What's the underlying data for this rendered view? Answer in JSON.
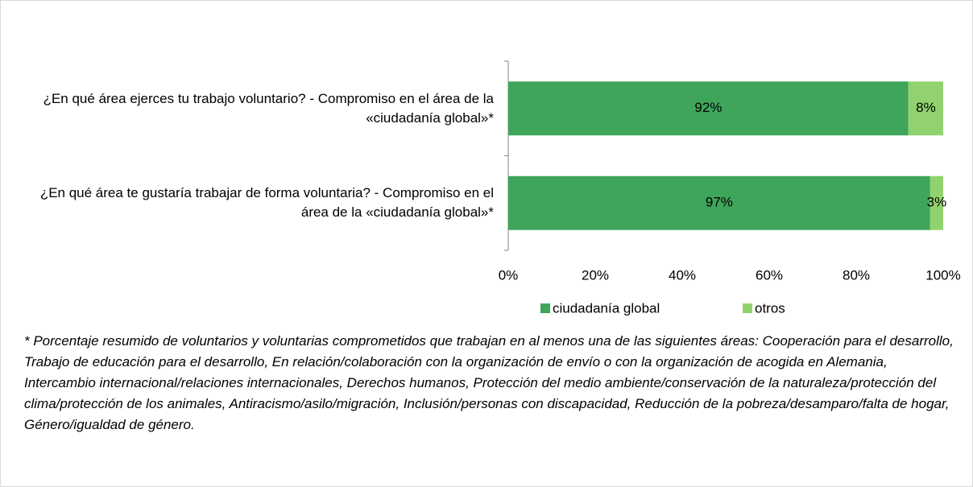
{
  "chart_data": {
    "type": "stacked_barh",
    "categories": [
      "¿En qué área ejerces tu trabajo voluntario? - Compromiso en el área de la «ciudadanía global»*",
      "¿En qué área te gustaría trabajar de forma voluntaria? - Compromiso en el área de la «ciudadanía global»*"
    ],
    "series": [
      {
        "name": "ciudadanía global",
        "color": "#3ea55b",
        "values": [
          92,
          97
        ],
        "value_labels": [
          "92%",
          "97%"
        ]
      },
      {
        "name": "otros",
        "color": "#92d26e",
        "values": [
          8,
          3
        ],
        "value_labels": [
          "8%",
          "3%"
        ]
      }
    ],
    "xlim": [
      0,
      100
    ],
    "xticks": [
      {
        "value": 0,
        "label": "0%"
      },
      {
        "value": 20,
        "label": "20%"
      },
      {
        "value": 40,
        "label": "40%"
      },
      {
        "value": 60,
        "label": "60%"
      },
      {
        "value": 80,
        "label": "80%"
      },
      {
        "value": 100,
        "label": "100%"
      }
    ],
    "legend": "bottom",
    "annotation": "* Porcentaje resumido de voluntarios y voluntarias comprometidos que trabajan en al menos una de las siguientes áreas: Cooperación para el desarrollo, Trabajo de educación para el desarrollo, En relación/colaboración con la organización de envío o con la organización de acogida en Alemania, Intercambio internacional/relaciones internacionales, Derechos humanos, Protección del medio ambiente/conservación de la naturaleza/protección del clima/protección de los animales, Antiracismo/asilo/migración, Inclusión/personas con discapacidad, Reducción de la pobreza/desamparo/falta de hogar, Género/igualdad de género."
  }
}
